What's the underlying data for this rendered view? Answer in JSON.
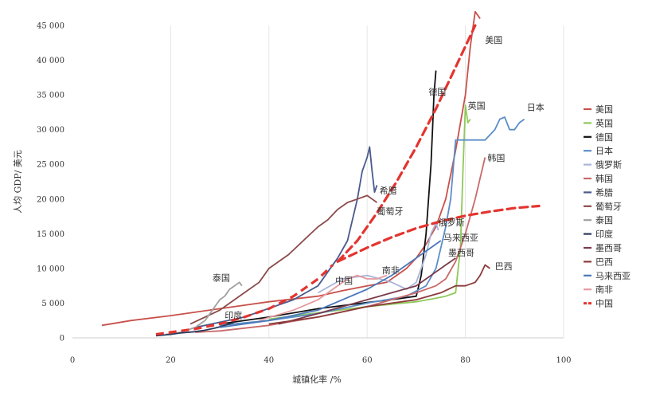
{
  "chart_data": {
    "type": "line",
    "xlabel": "城镇化率 /%",
    "ylabel": "人均 GDP/ 美元",
    "xlim": [
      0,
      100
    ],
    "ylim": [
      0,
      45000
    ],
    "x_ticks": [
      0,
      20,
      40,
      60,
      80,
      100
    ],
    "y_ticks": [
      0,
      5000,
      10000,
      15000,
      20000,
      25000,
      30000,
      35000,
      40000,
      45000
    ],
    "y_tick_labels": [
      "0",
      "5 000",
      "10 000",
      "15 000",
      "20 000",
      "25 000",
      "30 000",
      "35 000",
      "40 000",
      "45 000"
    ],
    "grid": "vertical",
    "legend_position": "right",
    "series": [
      {
        "name": "美国",
        "color": "#c8504b",
        "style": "solid",
        "x": [
          6,
          12,
          20,
          30,
          40,
          50,
          55,
          60,
          64,
          66,
          68,
          70,
          72,
          74,
          76,
          78,
          80,
          81,
          82,
          83
        ],
        "y": [
          1800,
          2500,
          3200,
          4200,
          5200,
          6000,
          6800,
          7500,
          8000,
          9000,
          10000,
          11500,
          13500,
          16000,
          20000,
          27000,
          35000,
          42000,
          47000,
          46000
        ]
      },
      {
        "name": "英国",
        "color": "#8fc95a",
        "style": "solid",
        "x": [
          40,
          50,
          60,
          70,
          74,
          76,
          78,
          79,
          79.5,
          80,
          80.5,
          81
        ],
        "y": [
          2700,
          3600,
          4500,
          5200,
          5700,
          6000,
          6500,
          13000,
          24000,
          33500,
          31000,
          31500
        ]
      },
      {
        "name": "德国",
        "color": "#111111",
        "style": "solid",
        "x": [
          30,
          40,
          50,
          60,
          66,
          70,
          71,
          72,
          72.5,
          73,
          73.3,
          73.6,
          74
        ],
        "y": [
          2000,
          3000,
          4200,
          5100,
          5600,
          6000,
          9000,
          15000,
          20000,
          25000,
          30000,
          35000,
          38500
        ]
      },
      {
        "name": "日本",
        "color": "#5b8ec8",
        "style": "solid",
        "x": [
          30,
          40,
          50,
          60,
          68,
          72,
          74,
          75,
          76,
          77,
          78,
          80,
          84,
          86,
          87,
          88,
          89,
          90,
          91,
          92
        ],
        "y": [
          1800,
          2500,
          3500,
          5000,
          6000,
          7500,
          10000,
          13000,
          16000,
          20000,
          28500,
          28500,
          28500,
          30000,
          31500,
          31800,
          30000,
          30000,
          31000,
          31500
        ]
      },
      {
        "name": "俄罗斯",
        "color": "#a9b4d9",
        "style": "solid",
        "x": [
          50,
          55,
          60,
          65,
          68,
          70,
          72,
          73,
          74,
          74.5
        ],
        "y": [
          6500,
          8500,
          9000,
          8000,
          7000,
          8000,
          12000,
          15000,
          16500,
          15500
        ]
      },
      {
        "name": "韩国",
        "color": "#c86a6a",
        "style": "solid",
        "x": [
          25,
          30,
          40,
          50,
          60,
          70,
          74,
          76,
          78,
          80,
          82,
          83,
          84
        ],
        "y": [
          800,
          1000,
          1800,
          3000,
          4500,
          6500,
          7500,
          8500,
          11000,
          15000,
          20000,
          23000,
          26000
        ]
      },
      {
        "name": "希腊",
        "color": "#4a5a8c",
        "style": "solid",
        "x": [
          25,
          35,
          45,
          50,
          52,
          54,
          56,
          58,
          59,
          60,
          60.5,
          61,
          61.5,
          62
        ],
        "y": [
          1500,
          3000,
          5500,
          7500,
          9500,
          11500,
          14000,
          20000,
          24000,
          26000,
          27500,
          24000,
          21000,
          22000
        ]
      },
      {
        "name": "葡萄牙",
        "color": "#8c4a4a",
        "style": "solid",
        "x": [
          24,
          30,
          35,
          38,
          40,
          44,
          47,
          50,
          52,
          54,
          56,
          58,
          60,
          61,
          62
        ],
        "y": [
          2000,
          4000,
          6500,
          8000,
          10000,
          12000,
          14000,
          16000,
          17000,
          18500,
          19500,
          20000,
          20500,
          20000,
          19500
        ]
      },
      {
        "name": "泰国",
        "color": "#a0a0a0",
        "style": "solid",
        "x": [
          19,
          22,
          25,
          27,
          29,
          30,
          31,
          32,
          33,
          34,
          34.5
        ],
        "y": [
          500,
          800,
          1500,
          2500,
          4500,
          5500,
          6000,
          7000,
          7500,
          8000,
          7500
        ]
      },
      {
        "name": "印度",
        "color": "#2a3a5c",
        "style": "solid",
        "x": [
          17,
          20,
          22,
          25,
          27,
          29,
          30,
          31,
          32,
          32.8
        ],
        "y": [
          300,
          500,
          700,
          900,
          1100,
          1400,
          1600,
          1800,
          2000,
          2200
        ]
      },
      {
        "name": "墨西哥",
        "color": "#7a3a4a",
        "style": "solid",
        "x": [
          42,
          50,
          55,
          60,
          65,
          70,
          72,
          74,
          75,
          76,
          77,
          78
        ],
        "y": [
          2000,
          3500,
          4500,
          5500,
          6500,
          7500,
          8500,
          9500,
          10000,
          10500,
          11000,
          11500
        ]
      },
      {
        "name": "巴西",
        "color": "#8c3a3a",
        "style": "solid",
        "x": [
          40,
          50,
          60,
          65,
          70,
          75,
          78,
          80,
          82,
          83,
          84,
          85
        ],
        "y": [
          2000,
          3000,
          4500,
          5000,
          5500,
          6500,
          7500,
          7500,
          8000,
          9000,
          10500,
          10000
        ]
      },
      {
        "name": "马来西亚",
        "color": "#4a78b8",
        "style": "solid",
        "x": [
          30,
          40,
          50,
          55,
          60,
          65,
          68,
          70,
          72,
          74,
          75
        ],
        "y": [
          1500,
          2500,
          4000,
          5500,
          7000,
          9000,
          10500,
          11500,
          12500,
          13500,
          14000
        ]
      },
      {
        "name": "南非",
        "color": "#e59aa0",
        "style": "solid",
        "x": [
          38,
          45,
          50,
          53,
          56,
          58,
          60,
          62,
          64
        ],
        "y": [
          2500,
          4000,
          5500,
          7000,
          8500,
          9000,
          8500,
          8500,
          9000
        ]
      },
      {
        "name": "中国",
        "color": "#e3342f",
        "style": "dashed",
        "x": [
          17,
          20,
          25,
          30,
          35,
          40,
          45,
          50,
          53
        ],
        "y": [
          500,
          800,
          1300,
          2000,
          3000,
          4200,
          6000,
          8500,
          10500
        ]
      }
    ],
    "projections": [
      {
        "x": [
          54,
          58,
          62,
          66,
          70,
          74,
          78,
          82
        ],
        "y": [
          11000,
          14000,
          18000,
          22500,
          27500,
          33000,
          39000,
          45000
        ]
      },
      {
        "x": [
          54,
          60,
          65,
          70,
          75,
          80,
          85,
          90,
          95
        ],
        "y": [
          11000,
          13000,
          14500,
          15800,
          16800,
          17600,
          18200,
          18700,
          19000
        ]
      }
    ],
    "annotations": [
      {
        "text": "美国",
        "x": 84,
        "y": 42500
      },
      {
        "text": "英国",
        "x": 80.5,
        "y": 33000
      },
      {
        "text": "日本",
        "x": 92.5,
        "y": 32800
      },
      {
        "text": "德国",
        "x": 72.5,
        "y": 35000
      },
      {
        "text": "韩国",
        "x": 84.5,
        "y": 25500
      },
      {
        "text": "希腊",
        "x": 62.5,
        "y": 20800
      },
      {
        "text": "葡萄牙",
        "x": 62,
        "y": 17800
      },
      {
        "text": "俄罗斯",
        "x": 74.5,
        "y": 16200
      },
      {
        "text": "马来西亚",
        "x": 75.5,
        "y": 14000
      },
      {
        "text": "墨西哥",
        "x": 76.5,
        "y": 11800
      },
      {
        "text": "巴西",
        "x": 86,
        "y": 9900
      },
      {
        "text": "南非",
        "x": 63,
        "y": 9300
      },
      {
        "text": "中国",
        "x": 53.5,
        "y": 7800
      },
      {
        "text": "泰国",
        "x": 28.5,
        "y": 8200
      },
      {
        "text": "印度",
        "x": 31,
        "y": 2800
      }
    ]
  }
}
